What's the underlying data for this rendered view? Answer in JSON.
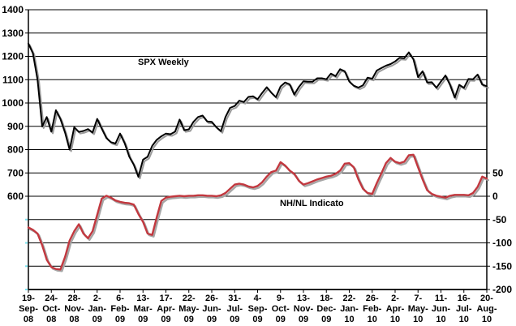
{
  "annotations": {
    "spx_label": "SPX Weekly",
    "nhnl_label": "NH/NL Indicato"
  },
  "chart_data": {
    "type": "line",
    "title": "",
    "grid": "horizontal-only",
    "legend_position": "none",
    "minor_tick_color": "#7fe3ef",
    "x_axis": {
      "tick_labels": [
        "19-Sep-08",
        "24-Oct-08",
        "28-Nov-08",
        "2-Jan-09",
        "6-Feb-09",
        "13-Mar-09",
        "17-Apr-09",
        "22-May-09",
        "26-Jun-09",
        "31-Jul-09",
        "4-Sep-09",
        "9-Oct-09",
        "13-Nov-09",
        "18-Dec-09",
        "22-Jan-10",
        "26-Feb-10",
        "2-Apr-10",
        "7-May-10",
        "11-Jun-10",
        "16-Jul-10",
        "20-Aug-10"
      ],
      "weeks_between_ticks": 5,
      "total_weeks": 101
    },
    "left_axis": {
      "tick_labels": [
        1400,
        1300,
        1200,
        1100,
        1000,
        900,
        800,
        700,
        600
      ],
      "max": 1400,
      "min": 200,
      "gridline_step": 100,
      "series": "SPX Weekly"
    },
    "right_axis": {
      "tick_labels": [
        50,
        0,
        -50,
        -100,
        -150,
        -200
      ],
      "max": 400,
      "min": -200,
      "gridline_step": 50,
      "series": "NH/NL Indicato"
    },
    "series": [
      {
        "name": "SPX Weekly",
        "axis": "left",
        "color": "#000000",
        "shadow_color": "#9a9a9a",
        "values": [
          1255,
          1213,
          1099,
          899,
          940,
          877,
          969,
          931,
          873,
          800,
          896,
          876,
          880,
          888,
          873,
          932,
          890,
          850,
          832,
          826,
          869,
          827,
          770,
          735,
          683,
          757,
          769,
          816,
          842,
          857,
          869,
          866,
          877,
          929,
          883,
          887,
          919,
          940,
          946,
          921,
          919,
          896,
          879,
          940,
          979,
          987,
          1010,
          1004,
          1026,
          1029,
          1016,
          1043,
          1068,
          1044,
          1025,
          1071,
          1088,
          1080,
          1036,
          1069,
          1093,
          1091,
          1091,
          1106,
          1106,
          1102,
          1126,
          1115,
          1145,
          1136,
          1092,
          1074,
          1066,
          1076,
          1109,
          1104,
          1139,
          1150,
          1160,
          1167,
          1178,
          1194,
          1192,
          1217,
          1187,
          1111,
          1136,
          1088,
          1089,
          1065,
          1092,
          1118,
          1077,
          1023,
          1078,
          1065,
          1103,
          1102,
          1122,
          1079,
          1072
        ]
      },
      {
        "name": "NH/NL Indicato",
        "axis": "right",
        "color": "#c2383f",
        "shadow_color": "#a6a6a6",
        "values": [
          -67,
          -72,
          -80,
          -105,
          -136,
          -152,
          -156,
          -157,
          -130,
          -95,
          -75,
          -60,
          -80,
          -90,
          -75,
          -40,
          -5,
          1,
          -3,
          -9,
          -12,
          -14,
          -15,
          -18,
          -38,
          -55,
          -80,
          -83,
          -45,
          -10,
          -3,
          -1,
          0,
          1,
          0,
          1,
          1,
          2,
          2,
          1,
          1,
          0,
          2,
          7,
          16,
          25,
          27,
          25,
          21,
          19,
          22,
          30,
          42,
          52,
          55,
          73,
          66,
          55,
          48,
          33,
          25,
          28,
          32,
          36,
          39,
          42,
          44,
          48,
          55,
          70,
          71,
          62,
          36,
          16,
          7,
          5,
          28,
          49,
          71,
          82,
          74,
          71,
          74,
          88,
          89,
          62,
          36,
          13,
          5,
          1,
          -1,
          -3,
          1,
          3,
          3,
          3,
          2,
          7,
          20,
          42,
          38
        ]
      }
    ]
  }
}
